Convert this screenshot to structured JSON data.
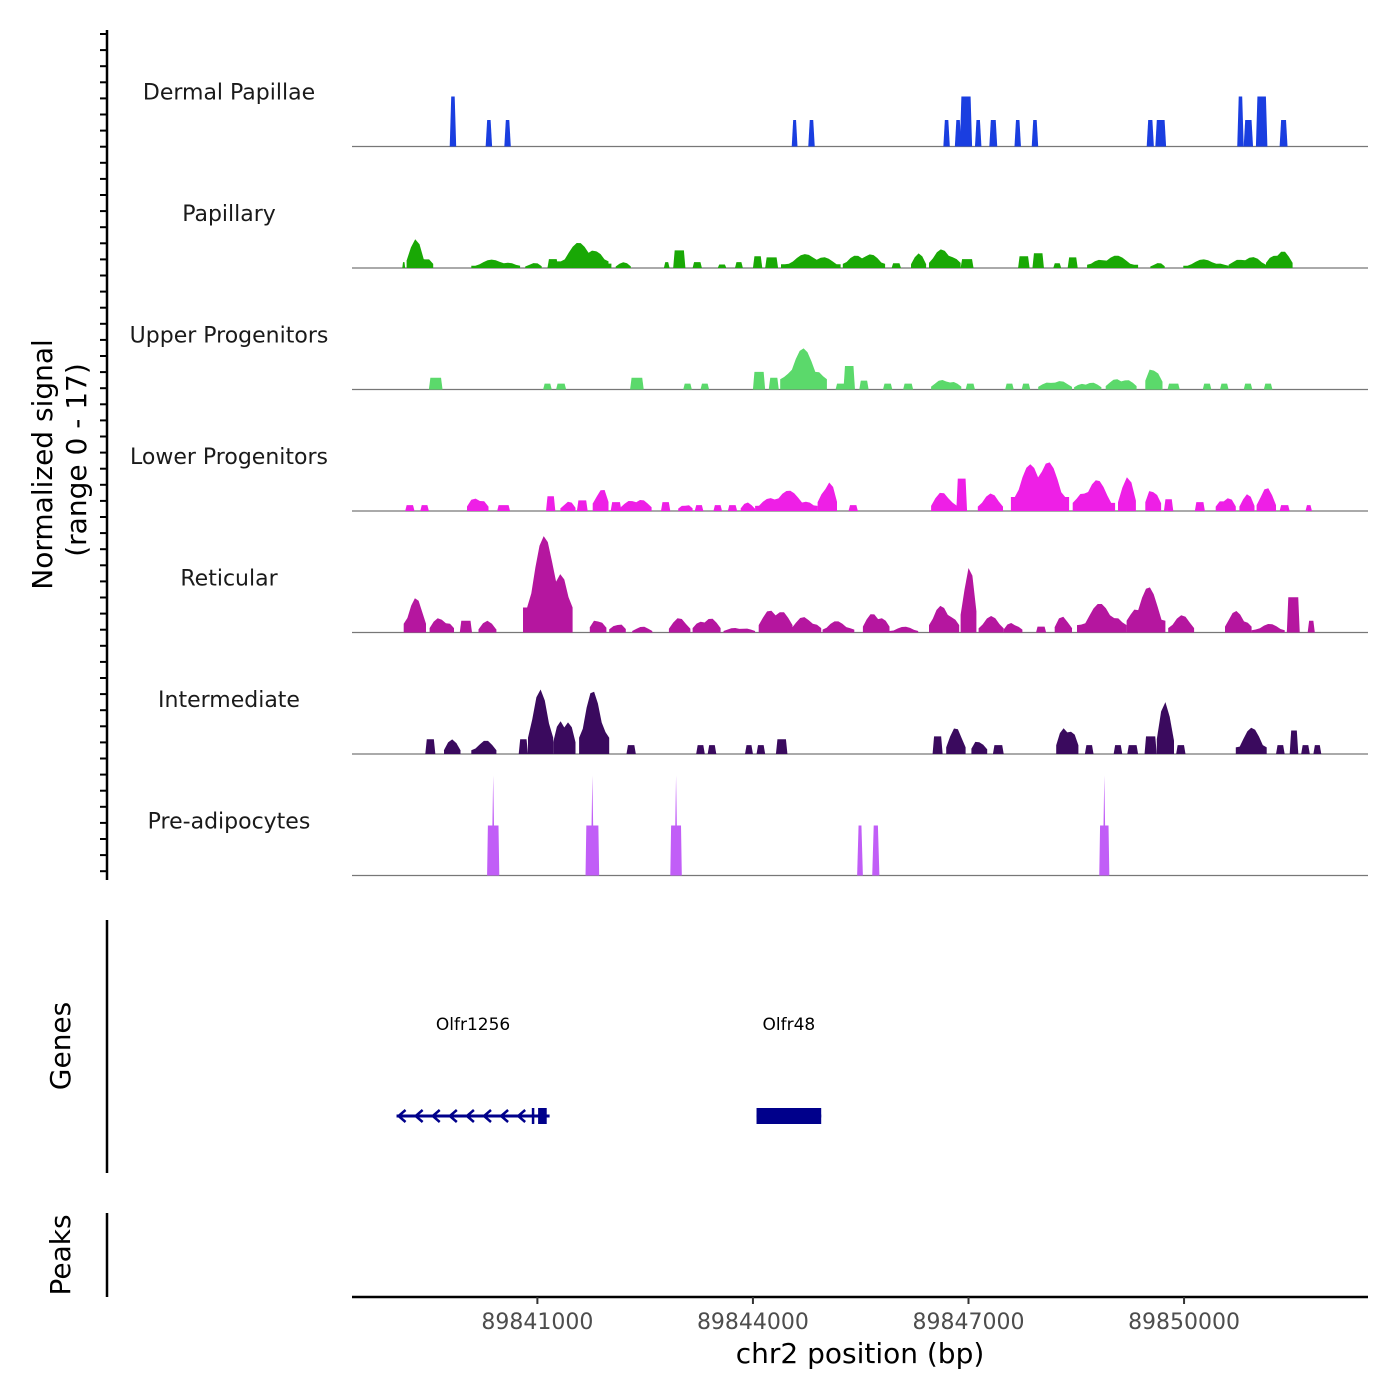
{
  "chart_data": {
    "type": "area",
    "title": "",
    "ylabel": "Normalized signal\n(range 0 - 17)",
    "ylabel_lines": [
      "Normalized signal",
      "(range 0 - 17)"
    ],
    "xlabel": "chr2 position (bp)",
    "chromosome": "chr2",
    "xlim": [
      89838420,
      89852560
    ],
    "ylim": [
      0,
      17
    ],
    "x_ticks": [
      89841000,
      89844000,
      89847000,
      89850000
    ],
    "x_tick_labels": [
      "89841000",
      "89844000",
      "89847000",
      "89850000"
    ],
    "grid": false,
    "legend": "none",
    "tracks": [
      {
        "name": "Dermal Papillae",
        "color": "#1a3ee0",
        "peaks": [
          [
            89839780,
            89839870,
            8.5
          ],
          [
            89840280,
            89840370,
            4.5
          ],
          [
            89840540,
            89840630,
            4.5
          ],
          [
            89844540,
            89844620,
            4.5
          ],
          [
            89844770,
            89844860,
            4.5
          ],
          [
            89846650,
            89846740,
            4.5
          ],
          [
            89846810,
            89846900,
            4.5
          ],
          [
            89846880,
            89847050,
            8.5
          ],
          [
            89847090,
            89847180,
            4.5
          ],
          [
            89847290,
            89847400,
            4.5
          ],
          [
            89847640,
            89847730,
            4.5
          ],
          [
            89847880,
            89847970,
            4.5
          ],
          [
            89849480,
            89849580,
            4.5
          ],
          [
            89849600,
            89849750,
            4.5
          ],
          [
            89850740,
            89850830,
            8.5
          ],
          [
            89850830,
            89850960,
            4.5
          ],
          [
            89851000,
            89851160,
            8.5
          ],
          [
            89851330,
            89851440,
            4.5
          ]
        ]
      },
      {
        "name": "Papillary",
        "color": "#19a805",
        "peaks": [
          [
            89839120,
            89839160,
            1
          ],
          [
            89839180,
            89839420,
            5
          ],
          [
            89839320,
            89839550,
            2.5
          ],
          [
            89840080,
            89840760,
            1.5
          ],
          [
            89840830,
            89841060,
            1
          ],
          [
            89841140,
            89841290,
            1.5
          ],
          [
            89841270,
            89841990,
            4.5
          ],
          [
            89841490,
            89842030,
            3
          ],
          [
            89842090,
            89842300,
            1
          ],
          [
            89842760,
            89842840,
            1
          ],
          [
            89842890,
            89843060,
            3
          ],
          [
            89843160,
            89843290,
            1
          ],
          [
            89843510,
            89843630,
            0.6
          ],
          [
            89843750,
            89843860,
            1
          ],
          [
            89844000,
            89844130,
            2
          ],
          [
            89844170,
            89844350,
            1.8
          ],
          [
            89844390,
            89845220,
            2.5
          ],
          [
            89845250,
            89845840,
            2.8
          ],
          [
            89845930,
            89846060,
            0.8
          ],
          [
            89846200,
            89846410,
            2.5
          ],
          [
            89846450,
            89846890,
            3.5
          ],
          [
            89846890,
            89847070,
            1.5
          ],
          [
            89847690,
            89847850,
            2
          ],
          [
            89847890,
            89848050,
            2.5
          ],
          [
            89848180,
            89848290,
            0.8
          ],
          [
            89848380,
            89848520,
            1.8
          ],
          [
            89848650,
            89849360,
            2.2
          ],
          [
            89849530,
            89849730,
            1
          ],
          [
            89849990,
            89850620,
            1.5
          ],
          [
            89850620,
            89851140,
            2.2
          ],
          [
            89851140,
            89851510,
            3.5
          ]
        ]
      },
      {
        "name": "Upper Progenitors",
        "color": "#5bd96b",
        "peaks": [
          [
            89839490,
            89839680,
            2
          ],
          [
            89841080,
            89841200,
            1
          ],
          [
            89841260,
            89841400,
            1
          ],
          [
            89842290,
            89842480,
            2
          ],
          [
            89843030,
            89843150,
            1
          ],
          [
            89843270,
            89843390,
            1
          ],
          [
            89844000,
            89844170,
            3
          ],
          [
            89844220,
            89844360,
            2
          ],
          [
            89844380,
            89845030,
            7
          ],
          [
            89845150,
            89845300,
            1
          ],
          [
            89845260,
            89845420,
            4
          ],
          [
            89845480,
            89845610,
            1.5
          ],
          [
            89845810,
            89845940,
            1
          ],
          [
            89846090,
            89846230,
            1
          ],
          [
            89846480,
            89846900,
            2
          ],
          [
            89846960,
            89847090,
            1
          ],
          [
            89847510,
            89847630,
            1
          ],
          [
            89847740,
            89847860,
            1
          ],
          [
            89847970,
            89848440,
            1.8
          ],
          [
            89848470,
            89848850,
            1.5
          ],
          [
            89848910,
            89849340,
            2.3
          ],
          [
            89849460,
            89849700,
            5
          ],
          [
            89849770,
            89849940,
            1
          ],
          [
            89850260,
            89850380,
            1
          ],
          [
            89850500,
            89850620,
            1
          ],
          [
            89850830,
            89850950,
            1
          ],
          [
            89851110,
            89851230,
            1
          ]
        ]
      },
      {
        "name": "Lower Progenitors",
        "color": "#ee1fe6",
        "peaks": [
          [
            89839160,
            89839290,
            1
          ],
          [
            89839370,
            89839490,
            1
          ],
          [
            89840020,
            89840320,
            3
          ],
          [
            89840440,
            89840620,
            1
          ],
          [
            89841120,
            89841250,
            2.5
          ],
          [
            89841320,
            89841530,
            1.8
          ],
          [
            89841550,
            89841700,
            1.8
          ],
          [
            89841770,
            89841990,
            5
          ],
          [
            89842020,
            89842170,
            1.5
          ],
          [
            89842160,
            89842590,
            2.5
          ],
          [
            89842720,
            89842850,
            1.5
          ],
          [
            89842960,
            89843160,
            1.5
          ],
          [
            89843190,
            89843310,
            1
          ],
          [
            89843450,
            89843570,
            1
          ],
          [
            89843650,
            89843780,
            1
          ],
          [
            89843830,
            89844030,
            1.5
          ],
          [
            89844030,
            89844900,
            3.5
          ],
          [
            89844900,
            89845170,
            6
          ],
          [
            89845330,
            89845460,
            1
          ],
          [
            89846480,
            89846840,
            3.5
          ],
          [
            89846830,
            89846980,
            5.5
          ],
          [
            89847130,
            89847480,
            3
          ],
          [
            89847590,
            89848400,
            9.5
          ],
          [
            89848450,
            89849040,
            5.5
          ],
          [
            89849080,
            89849330,
            6
          ],
          [
            89849460,
            89849680,
            5
          ],
          [
            89849720,
            89849850,
            2
          ],
          [
            89850150,
            89850290,
            1.5
          ],
          [
            89850440,
            89850720,
            3
          ],
          [
            89850770,
            89850980,
            3
          ],
          [
            89851010,
            89851280,
            4
          ],
          [
            89851330,
            89851470,
            1
          ],
          [
            89851690,
            89851780,
            1
          ]
        ]
      },
      {
        "name": "Reticular",
        "color": "#b5169f",
        "peaks": [
          [
            89839140,
            89839450,
            6
          ],
          [
            89839500,
            89839840,
            3
          ],
          [
            89839920,
            89840090,
            2
          ],
          [
            89840180,
            89840430,
            2
          ],
          [
            89840800,
            89841490,
            17
          ],
          [
            89841730,
            89841960,
            3
          ],
          [
            89842000,
            89842230,
            2
          ],
          [
            89842320,
            89842600,
            1
          ],
          [
            89842830,
            89843130,
            2.5
          ],
          [
            89843160,
            89843550,
            3
          ],
          [
            89843590,
            89844030,
            1
          ],
          [
            89844080,
            89844550,
            5
          ],
          [
            89844540,
            89844950,
            3
          ],
          [
            89844970,
            89845410,
            2
          ],
          [
            89845530,
            89845900,
            4
          ],
          [
            89845900,
            89846300,
            1
          ],
          [
            89846450,
            89846870,
            5
          ],
          [
            89846890,
            89847110,
            12
          ],
          [
            89847140,
            89847490,
            2.8
          ],
          [
            89847490,
            89847750,
            2
          ],
          [
            89847940,
            89848080,
            1
          ],
          [
            89848200,
            89848440,
            3
          ],
          [
            89848510,
            89849200,
            5
          ],
          [
            89849200,
            89849740,
            8
          ],
          [
            89849780,
            89850140,
            3
          ],
          [
            89850570,
            89850940,
            4
          ],
          [
            89850940,
            89851400,
            1.5
          ],
          [
            89851430,
            89851610,
            6
          ],
          [
            89851720,
            89851820,
            2
          ]
        ]
      },
      {
        "name": "Intermediate",
        "color": "#3a0a5e",
        "peaks": [
          [
            89839440,
            89839580,
            2.5
          ],
          [
            89839700,
            89839930,
            2.5
          ],
          [
            89840080,
            89840430,
            2.5
          ],
          [
            89840740,
            89840870,
            2.5
          ],
          [
            89840870,
            89841220,
            11
          ],
          [
            89841220,
            89841530,
            8
          ],
          [
            89841580,
            89842000,
            11
          ],
          [
            89842240,
            89842370,
            1.5
          ],
          [
            89843210,
            89843330,
            1.5
          ],
          [
            89843370,
            89843490,
            1.5
          ],
          [
            89843890,
            89844000,
            1.5
          ],
          [
            89844050,
            89844170,
            1.5
          ],
          [
            89844320,
            89844480,
            2.5
          ],
          [
            89846500,
            89846640,
            3
          ],
          [
            89846690,
            89846960,
            4.5
          ],
          [
            89847040,
            89847260,
            3
          ],
          [
            89847340,
            89847490,
            1.5
          ],
          [
            89848220,
            89848530,
            6
          ],
          [
            89848620,
            89848740,
            1.5
          ],
          [
            89849020,
            89849140,
            1.5
          ],
          [
            89849210,
            89849360,
            1.5
          ],
          [
            89849450,
            89849620,
            3
          ],
          [
            89849620,
            89849860,
            9
          ],
          [
            89849890,
            89850020,
            1.5
          ],
          [
            89850720,
            89851150,
            4.5
          ],
          [
            89851280,
            89851400,
            1.5
          ],
          [
            89851470,
            89851590,
            4
          ],
          [
            89851630,
            89851750,
            1.5
          ],
          [
            89851800,
            89851910,
            1.5
          ]
        ]
      },
      {
        "name": "Pre-adipocytes",
        "color": "#c15ef7",
        "peaks": [
          [
            89840300,
            89840470,
            17
          ],
          [
            89841670,
            89841860,
            17
          ],
          [
            89842850,
            89843010,
            17
          ],
          [
            89845450,
            89845530,
            8.5
          ],
          [
            89845660,
            89845760,
            8.5
          ],
          [
            89848820,
            89848960,
            17
          ]
        ]
      }
    ],
    "genes_track": {
      "label": "Genes",
      "color": "#00008b",
      "genes": [
        {
          "name": "Olfr1256",
          "start": 89839040,
          "end": 89841170,
          "strand": "-",
          "exons": [
            [
              89841010,
              89841130
            ]
          ],
          "intron_markers": [
            89840940
          ]
        },
        {
          "name": "Olfr48",
          "start": 89844050,
          "end": 89844950,
          "strand": "+",
          "exons": [
            [
              89844050,
              89844950
            ]
          ]
        }
      ]
    },
    "peaks_track": {
      "label": "Peaks",
      "peaks": []
    }
  }
}
